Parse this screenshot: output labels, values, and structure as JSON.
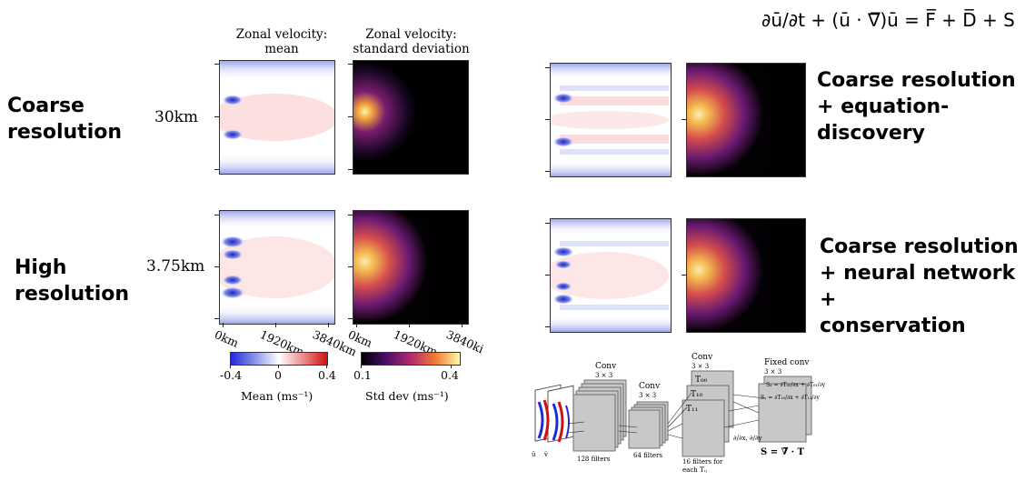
{
  "columns": {
    "mean": {
      "title": "Zonal velocity:",
      "subtitle": "mean"
    },
    "std": {
      "title": "Zonal velocity:",
      "subtitle": "standard deviation"
    }
  },
  "rows": {
    "coarse": {
      "label_line1": "Coarse",
      "label_line2": "resolution",
      "resolution": "30km"
    },
    "high": {
      "label_line1": "High",
      "label_line2": "resolution",
      "resolution": "3.75km"
    }
  },
  "x_axis": {
    "mean_ticks": [
      "0km",
      "1920km",
      "3840km"
    ],
    "std_ticks": [
      "0km",
      "1920km",
      "3840ki"
    ]
  },
  "colorbars": {
    "mean": {
      "ticks": [
        "-0.4",
        "0",
        "0.4"
      ],
      "label": "Mean (ms⁻¹)",
      "colors": [
        "#1f2ad8",
        "#ffffff",
        "#d01010"
      ]
    },
    "std": {
      "ticks": [
        "0.1",
        "0.4"
      ],
      "label": "Std dev (ms⁻¹)",
      "colors": [
        "#000000",
        "#4a0e6b",
        "#b3286f",
        "#f27a33",
        "#fcfba4"
      ]
    }
  },
  "equation": {
    "text": "∂ū/∂t + (ū · ∇̅)ū = F̅ + D̅ + S"
  },
  "right_labels": {
    "eq_discovery": [
      "Coarse resolution",
      "+ equation-",
      "discovery"
    ],
    "neural": [
      "Coarse resolution",
      "+ neural network +",
      "conservation"
    ]
  },
  "cnn": {
    "conv1": {
      "title": "Conv",
      "size": "3 × 3",
      "filters": "128 filters"
    },
    "conv2": {
      "title": "Conv",
      "size": "3 × 3",
      "filters": "64 filters"
    },
    "conv3": {
      "title": "Conv",
      "size": "3 × 3",
      "filters_line1": "16 filters for",
      "filters_line2": "each Tᵢⱼ",
      "t00": "T₀₀",
      "t10": "T₁₀",
      "t11": "T₁₁"
    },
    "fixed": {
      "title": "Fixed conv",
      "size": "3 × 3",
      "sx": "Sₓ = ∂T₀₀/∂x + ∂T₀₁/∂y",
      "sy": "Sᵧ = ∂T₁₀/∂x + ∂T₁₁/∂y"
    },
    "deriv": "∂/∂x, ∂/∂y",
    "inputs": [
      "ū",
      "v̅"
    ],
    "output": "S = ∇̅ · T"
  }
}
